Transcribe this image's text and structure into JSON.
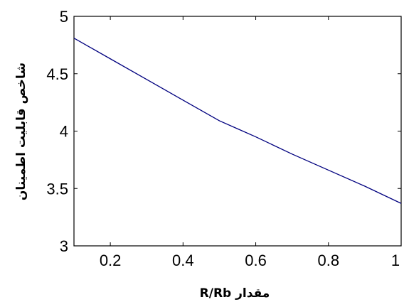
{
  "chart_data": {
    "type": "line",
    "title": "",
    "xlabel": "مقدار R/Rb",
    "ylabel": "شاخص قابلیت اطمینان",
    "xlim": [
      0.1,
      1.0
    ],
    "ylim": [
      3.0,
      5.0
    ],
    "xticks": [
      {
        "value": 0.2,
        "label": "0.2"
      },
      {
        "value": 0.4,
        "label": "0.4"
      },
      {
        "value": 0.6,
        "label": "0.6"
      },
      {
        "value": 0.8,
        "label": "0.8"
      },
      {
        "value": 1.0,
        "label": "1"
      }
    ],
    "yticks": [
      {
        "value": 3.0,
        "label": "3"
      },
      {
        "value": 3.5,
        "label": "3.5"
      },
      {
        "value": 4.0,
        "label": "4"
      },
      {
        "value": 4.5,
        "label": "4.5"
      },
      {
        "value": 5.0,
        "label": "5"
      }
    ],
    "grid": false,
    "series": [
      {
        "color": "#00007f",
        "x": [
          0.1,
          0.2,
          0.3,
          0.4,
          0.5,
          0.55,
          0.6,
          0.7,
          0.8,
          0.9,
          1.0
        ],
        "y": [
          4.81,
          4.63,
          4.45,
          4.27,
          4.09,
          4.02,
          3.95,
          3.8,
          3.66,
          3.52,
          3.37
        ]
      }
    ]
  }
}
